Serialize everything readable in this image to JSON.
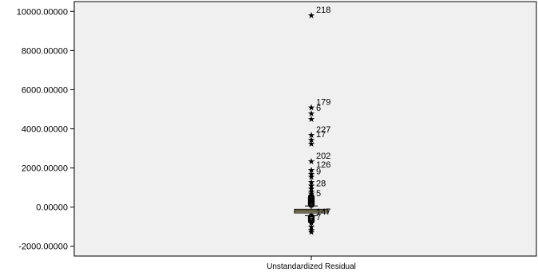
{
  "chart_data": {
    "type": "boxplot",
    "title": "",
    "xlabel": "",
    "ylabel": "",
    "category": "Unstandardized Residual",
    "ylim": [
      -2500,
      10500
    ],
    "yticks": [
      -2000,
      0,
      2000,
      4000,
      6000,
      8000,
      10000
    ],
    "ytick_labels": [
      "-2000.00000",
      "0.00000",
      "2000.00000",
      "4000.00000",
      "6000.00000",
      "8000.00000",
      "10000.00000"
    ],
    "grid": false,
    "box": {
      "q1": -300,
      "median": -200,
      "q3": -110,
      "whisker_low": -440,
      "whisker_high": 60
    },
    "box_color": "#d8cf9a",
    "background_color": "#f0f0f0",
    "outliers": [
      {
        "value": 9800,
        "marker": "star",
        "label": "218"
      },
      {
        "value": 5100,
        "marker": "star",
        "label": "179"
      },
      {
        "value": 4800,
        "marker": "star",
        "label": "6"
      },
      {
        "value": 4500,
        "marker": "star",
        "label": ""
      },
      {
        "value": 3700,
        "marker": "star",
        "label": "227"
      },
      {
        "value": 3450,
        "marker": "star",
        "label": "17"
      },
      {
        "value": 3250,
        "marker": "star",
        "label": ""
      },
      {
        "value": 2350,
        "marker": "star",
        "label": "202"
      },
      {
        "value": 1900,
        "marker": "star",
        "label": "126"
      },
      {
        "value": 1700,
        "marker": "star",
        "label": ""
      },
      {
        "value": 1550,
        "marker": "star",
        "label": "9"
      },
      {
        "value": 1300,
        "marker": "star",
        "label": ""
      },
      {
        "value": 1100,
        "marker": "star",
        "label": ""
      },
      {
        "value": 950,
        "marker": "star",
        "label": "28"
      },
      {
        "value": 800,
        "marker": "star",
        "label": ""
      },
      {
        "value": 700,
        "marker": "star",
        "label": ""
      },
      {
        "value": 600,
        "marker": "star",
        "label": ""
      },
      {
        "value": 500,
        "marker": "circle",
        "label": ""
      },
      {
        "value": 430,
        "marker": "circle",
        "label": "5"
      },
      {
        "value": 370,
        "marker": "circle",
        "label": ""
      },
      {
        "value": 310,
        "marker": "circle",
        "label": ""
      },
      {
        "value": 250,
        "marker": "circle",
        "label": ""
      },
      {
        "value": 190,
        "marker": "circle",
        "label": ""
      },
      {
        "value": 130,
        "marker": "circle",
        "label": ""
      },
      {
        "value": -500,
        "marker": "circle",
        "label": "147"
      },
      {
        "value": -560,
        "marker": "circle",
        "label": ""
      },
      {
        "value": -620,
        "marker": "circle",
        "label": ""
      },
      {
        "value": -700,
        "marker": "circle",
        "label": ""
      },
      {
        "value": -780,
        "marker": "star",
        "label": "7"
      },
      {
        "value": -1000,
        "marker": "star",
        "label": ""
      },
      {
        "value": -1150,
        "marker": "star",
        "label": ""
      },
      {
        "value": -1250,
        "marker": "star",
        "label": ""
      }
    ]
  }
}
